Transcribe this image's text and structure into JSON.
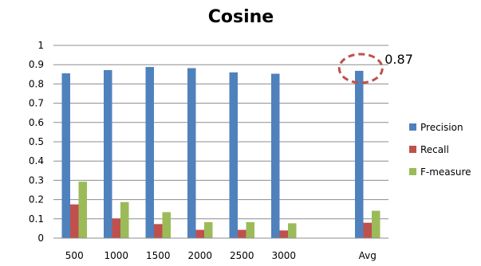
{
  "chart_data": {
    "type": "bar",
    "title": "Cosine",
    "xlabel": "",
    "ylabel": "",
    "categories": [
      "500",
      "1000",
      "1500",
      "2000",
      "2500",
      "3000",
      "",
      "Avg"
    ],
    "series": [
      {
        "name": "Precision",
        "color": "#4f81bd",
        "values": [
          0.855,
          0.872,
          0.888,
          0.882,
          0.86,
          0.853,
          null,
          0.868
        ]
      },
      {
        "name": "Recall",
        "color": "#c0504d",
        "values": [
          0.175,
          0.102,
          0.073,
          0.043,
          0.043,
          0.04,
          null,
          0.08
        ]
      },
      {
        "name": "F-measure",
        "color": "#9bbb59",
        "values": [
          0.293,
          0.187,
          0.135,
          0.083,
          0.083,
          0.077,
          null,
          0.142
        ]
      }
    ],
    "ylim": [
      0,
      1
    ],
    "yticks": [
      "0",
      "0.1",
      "0.2",
      "0.3",
      "0.4",
      "0.5",
      "0.6",
      "0.7",
      "0.8",
      "0.9",
      "1"
    ],
    "grid": true,
    "legend_position": "right",
    "annotation": {
      "text": "0.87",
      "category": "Avg",
      "series": "Precision",
      "shape": "dashed-circle",
      "color": "#c0504d"
    }
  }
}
